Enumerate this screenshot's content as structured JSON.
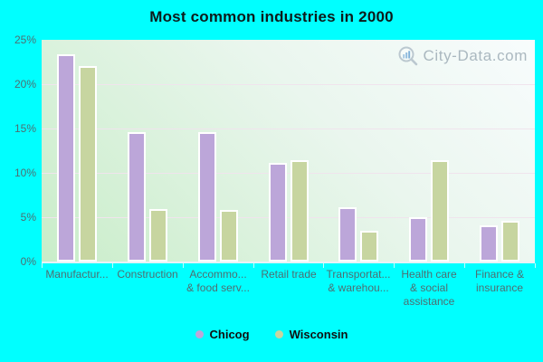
{
  "title": "Most common industries in 2000",
  "watermark": {
    "text": "City-Data.com"
  },
  "colors": {
    "page_background": "#00ffff",
    "chicog_bar": "#bca6d9",
    "wisconsin_bar": "#c7d5a0",
    "bar_outline": "#ffffff",
    "axis_text": "#4e6e72",
    "gridline": "#f0e4ed",
    "title_text": "#0d1b1b",
    "legend_text": "#101010",
    "watermark_text": "#a7b5bd",
    "plot_gradient_top_right": "#f8fcfd",
    "plot_gradient_bottom_left": "#c9edc9"
  },
  "chart_data": {
    "type": "bar",
    "title": "Most common industries in 2000",
    "categories": [
      "Manufactur...",
      "Construction",
      "Accommo... & food serv...",
      "Retail trade",
      "Transportat... & warehou...",
      "Health care & social assistance",
      "Finance & insurance"
    ],
    "category_display_lines": [
      [
        "Manufactur..."
      ],
      [
        "Construction"
      ],
      [
        "Accommo...",
        "& food serv..."
      ],
      [
        "Retail trade"
      ],
      [
        "Transportat...",
        "& warehou..."
      ],
      [
        "Health care",
        "& social",
        "assistance"
      ],
      [
        "Finance &",
        "insurance"
      ]
    ],
    "series": [
      {
        "name": "Chicog",
        "color": "#bca6d9",
        "values": [
          23.4,
          14.6,
          14.6,
          11.1,
          6.1,
          5.0,
          4.1
        ]
      },
      {
        "name": "Wisconsin",
        "color": "#c7d5a0",
        "values": [
          22.0,
          5.9,
          5.8,
          11.4,
          3.5,
          11.4,
          4.6
        ]
      }
    ],
    "xlabel": "",
    "ylabel": "",
    "ylim": [
      0,
      25
    ],
    "yticks": [
      0,
      5,
      10,
      15,
      20,
      25
    ],
    "ytick_labels": [
      "0%",
      "5%",
      "10%",
      "15%",
      "20%",
      "25%"
    ],
    "grid": true,
    "legend_position": "bottom"
  }
}
